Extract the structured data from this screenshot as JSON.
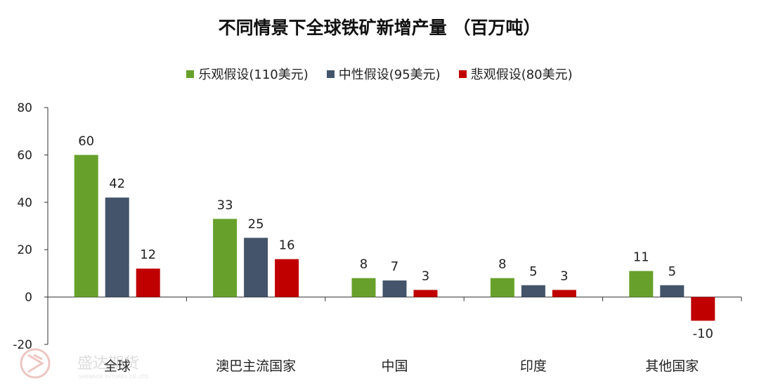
{
  "chart_data": {
    "type": "bar",
    "title": "不同情景下全球铁矿新增产量  （百万吨）",
    "categories": [
      "全球",
      "澳巴主流国家",
      "中国",
      "印度",
      "其他国家"
    ],
    "series": [
      {
        "name": "乐观假设(110美元)",
        "color": "#67a12b",
        "values": [
          60,
          33,
          8,
          8,
          11
        ]
      },
      {
        "name": "中性假设(95美元)",
        "color": "#44546a",
        "values": [
          42,
          25,
          7,
          5,
          5
        ]
      },
      {
        "name": "悲观假设(80美元)",
        "color": "#c00000",
        "values": [
          12,
          16,
          3,
          3,
          -10
        ]
      }
    ],
    "yticks": [
      "80",
      "60",
      "40",
      "20",
      "0",
      "-20"
    ],
    "ylim": [
      -20,
      80
    ],
    "legend_position": "top",
    "grid": false
  },
  "watermark": {
    "text": "盛达期货",
    "subtext": "SHENGDA FUTURES CO.,LTD."
  }
}
